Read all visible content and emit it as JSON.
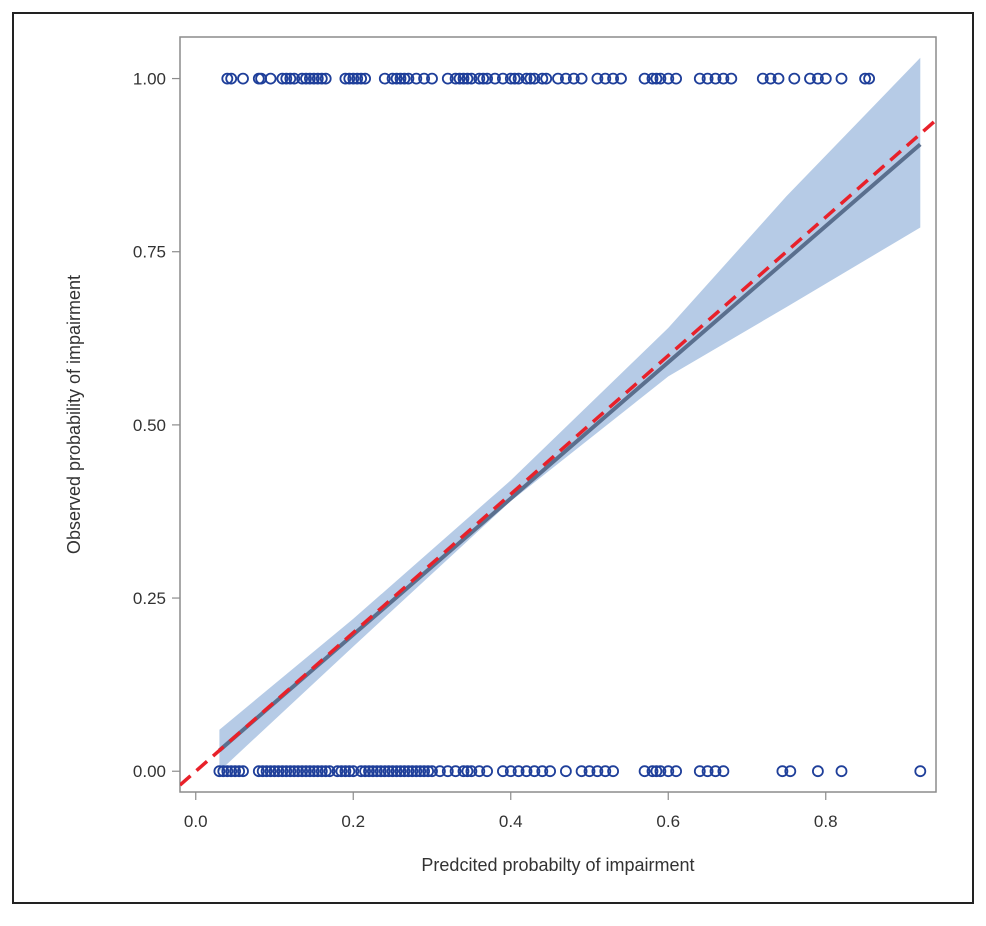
{
  "chart_data": {
    "type": "scatter",
    "title": "",
    "xlabel": "Predcited probabilty of impairment",
    "ylabel": "Observed probability of impairment",
    "xlim": [
      -0.02,
      0.94
    ],
    "ylim": [
      -0.03,
      1.06
    ],
    "x_ticks": [
      0.0,
      0.2,
      0.4,
      0.6,
      0.8
    ],
    "x_tick_labels": [
      "0.0",
      "0.2",
      "0.4",
      "0.6",
      "0.8"
    ],
    "y_ticks": [
      0.0,
      0.25,
      0.5,
      0.75,
      1.0
    ],
    "y_tick_labels": [
      "0.00",
      "0.25",
      "0.50",
      "0.75",
      "1.00"
    ],
    "grid": false,
    "legend": "none",
    "series": [
      {
        "kind": "scatter",
        "y": 1.0,
        "x": [
          0.04,
          0.045,
          0.06,
          0.08,
          0.083,
          0.095,
          0.11,
          0.115,
          0.12,
          0.125,
          0.135,
          0.14,
          0.145,
          0.15,
          0.155,
          0.16,
          0.165,
          0.19,
          0.195,
          0.2,
          0.205,
          0.21,
          0.215,
          0.24,
          0.25,
          0.255,
          0.26,
          0.265,
          0.27,
          0.28,
          0.29,
          0.3,
          0.32,
          0.33,
          0.335,
          0.34,
          0.345,
          0.35,
          0.36,
          0.365,
          0.37,
          0.38,
          0.39,
          0.4,
          0.405,
          0.41,
          0.42,
          0.425,
          0.43,
          0.44,
          0.445,
          0.46,
          0.47,
          0.48,
          0.49,
          0.51,
          0.52,
          0.53,
          0.54,
          0.57,
          0.58,
          0.585,
          0.59,
          0.6,
          0.61,
          0.64,
          0.65,
          0.66,
          0.67,
          0.68,
          0.72,
          0.73,
          0.74,
          0.76,
          0.78,
          0.79,
          0.8,
          0.82,
          0.85,
          0.855
        ]
      },
      {
        "kind": "scatter",
        "y": 0.0,
        "x": [
          0.03,
          0.035,
          0.04,
          0.045,
          0.05,
          0.055,
          0.06,
          0.08,
          0.085,
          0.09,
          0.095,
          0.1,
          0.105,
          0.11,
          0.115,
          0.12,
          0.125,
          0.13,
          0.135,
          0.14,
          0.145,
          0.15,
          0.155,
          0.16,
          0.165,
          0.17,
          0.18,
          0.185,
          0.19,
          0.195,
          0.2,
          0.21,
          0.215,
          0.22,
          0.225,
          0.23,
          0.235,
          0.24,
          0.245,
          0.25,
          0.255,
          0.26,
          0.265,
          0.27,
          0.275,
          0.28,
          0.285,
          0.29,
          0.295,
          0.3,
          0.31,
          0.32,
          0.33,
          0.34,
          0.345,
          0.35,
          0.36,
          0.37,
          0.39,
          0.4,
          0.41,
          0.42,
          0.43,
          0.44,
          0.45,
          0.47,
          0.49,
          0.5,
          0.51,
          0.52,
          0.53,
          0.57,
          0.58,
          0.585,
          0.59,
          0.6,
          0.61,
          0.64,
          0.65,
          0.66,
          0.67,
          0.745,
          0.755,
          0.79,
          0.82,
          0.92
        ]
      }
    ],
    "fit_line": [
      [
        0.03,
        0.03
      ],
      [
        0.92,
        0.905
      ]
    ],
    "confidence_band": {
      "upper": [
        [
          0.03,
          0.06
        ],
        [
          0.2,
          0.22
        ],
        [
          0.4,
          0.42
        ],
        [
          0.6,
          0.64
        ],
        [
          0.75,
          0.83
        ],
        [
          0.92,
          1.03
        ]
      ],
      "lower": [
        [
          0.92,
          0.785
        ],
        [
          0.75,
          0.67
        ],
        [
          0.6,
          0.57
        ],
        [
          0.4,
          0.39
        ],
        [
          0.2,
          0.18
        ],
        [
          0.03,
          0.0
        ]
      ]
    },
    "reference_line": [
      [
        -0.02,
        -0.02
      ],
      [
        0.94,
        0.94
      ]
    ],
    "colors": {
      "points": "#1f3f9a",
      "band": "#b6cbe6",
      "fit": "#5a6f8e",
      "reference": "#e8212a",
      "axis": "#8c8c8c"
    }
  }
}
